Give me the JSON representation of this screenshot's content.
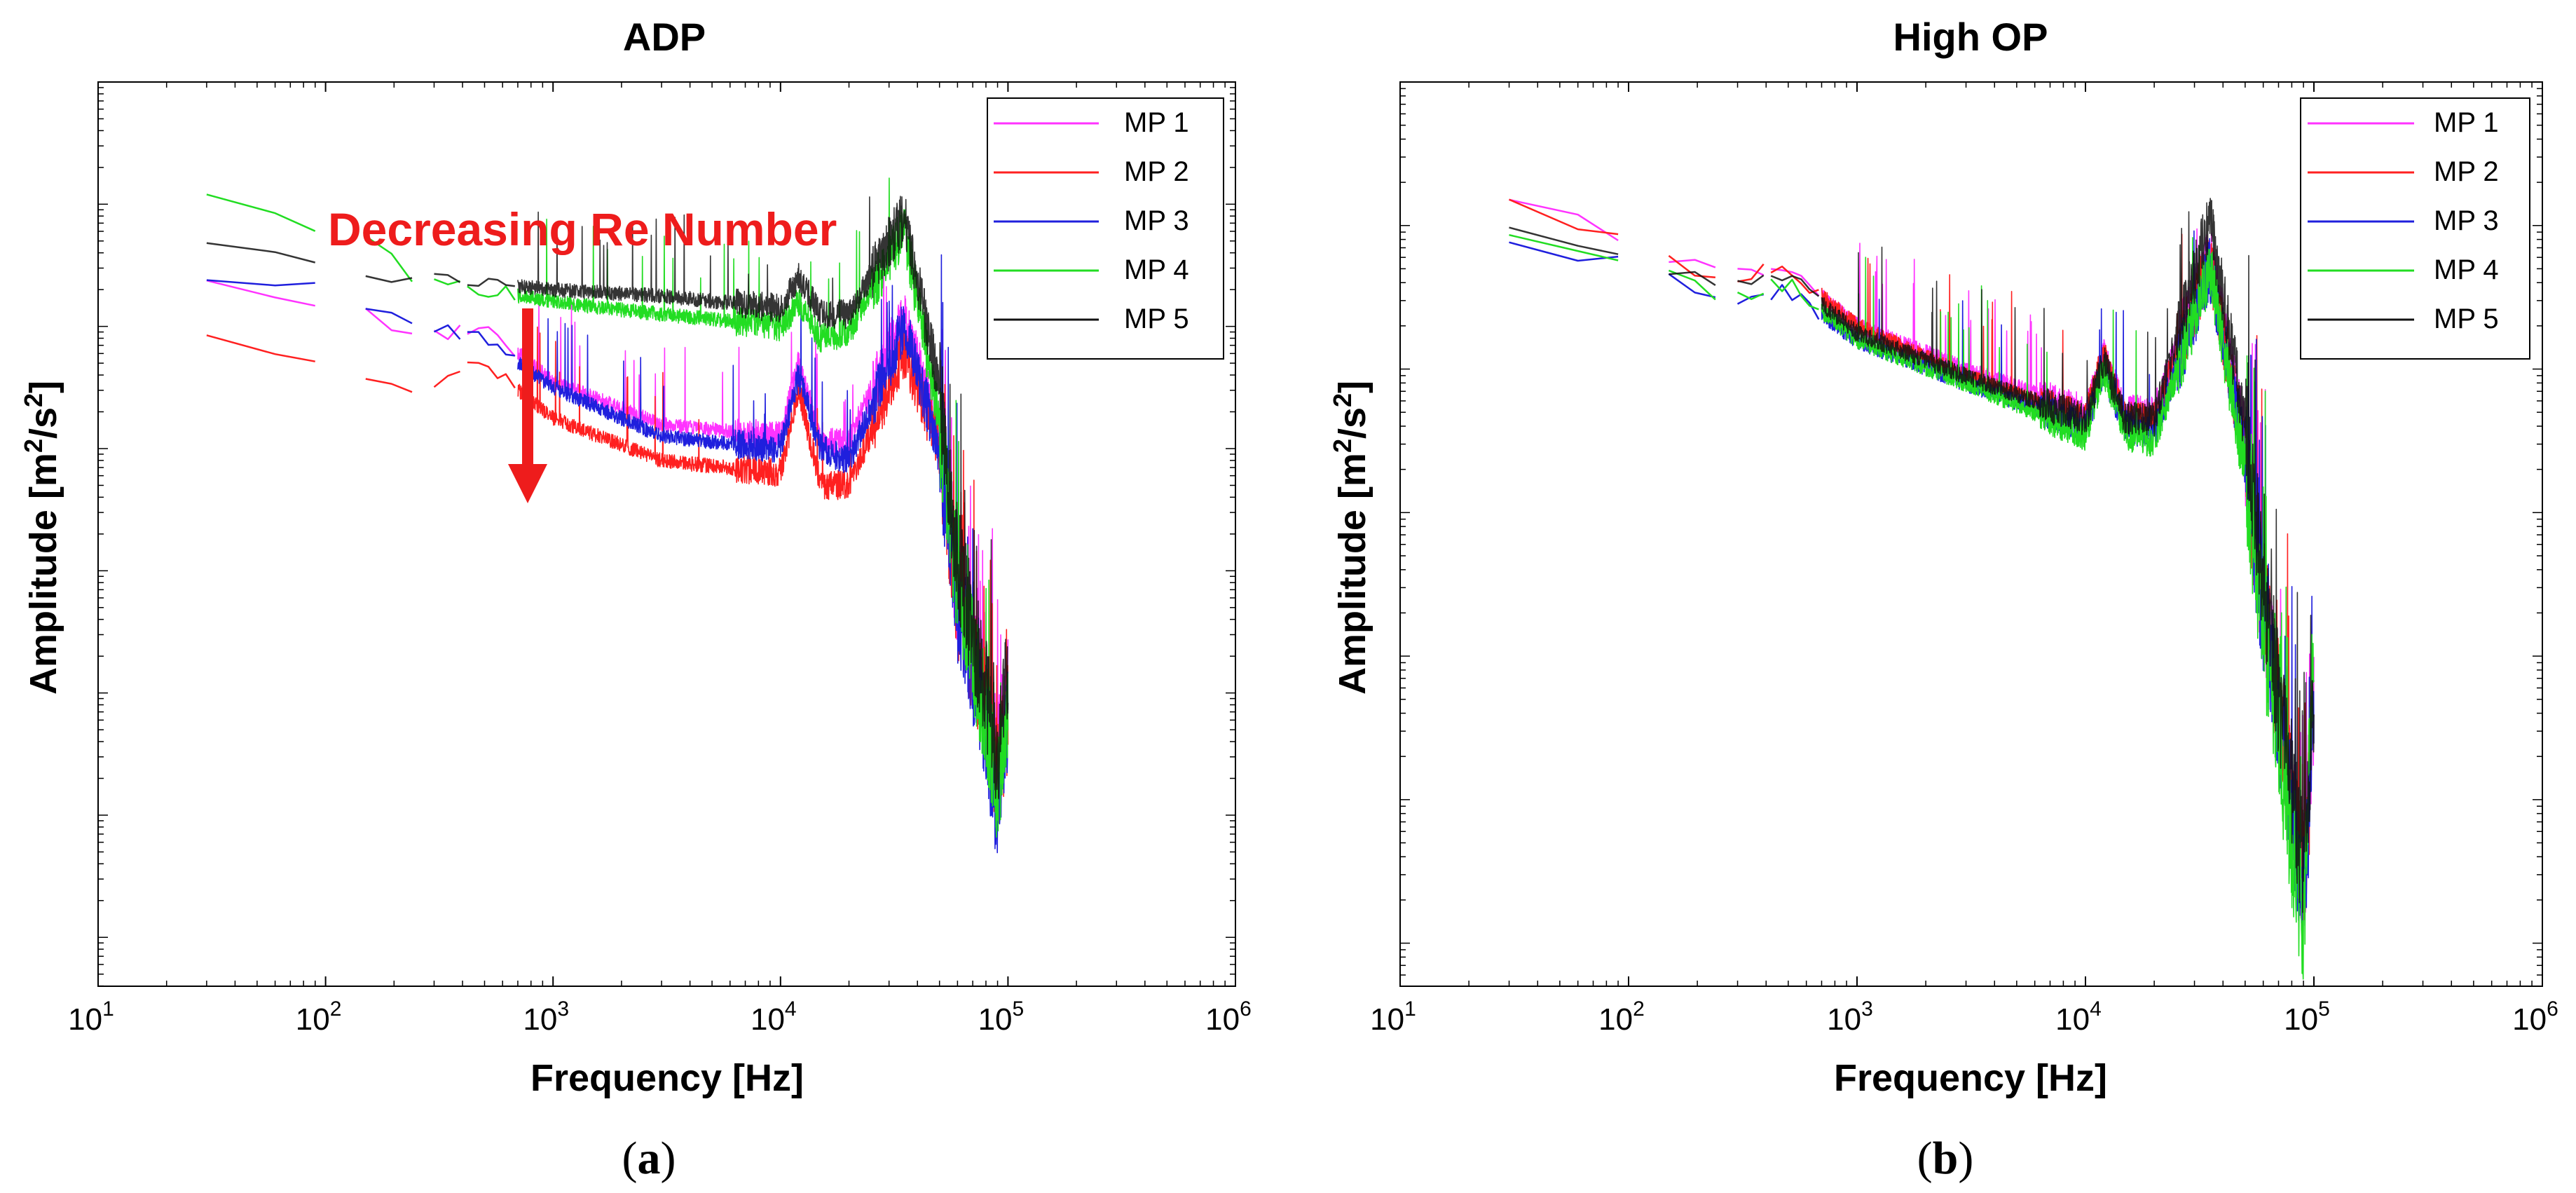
{
  "chart_data": [
    {
      "type": "line",
      "panel_label": "a",
      "title": "ADP",
      "xlabel": "Frequency [Hz]",
      "ylabel": {
        "main": "Amplitude [m",
        "sup1": "2",
        "mid": "/s",
        "sup2": "2",
        "end": "]"
      },
      "x_scale": "log",
      "xlim": [
        10,
        1000000
      ],
      "xticks": [
        {
          "base": "10",
          "exp": "1"
        },
        {
          "base": "10",
          "exp": "2"
        },
        {
          "base": "10",
          "exp": "3"
        },
        {
          "base": "10",
          "exp": "4"
        },
        {
          "base": "10",
          "exp": "5"
        },
        {
          "base": "10",
          "exp": "6"
        }
      ],
      "y_scale": "log",
      "ylim_decades": [
        -7.4,
        0
      ],
      "yticks_shown": false,
      "legend_position": "top-right",
      "annotation": {
        "text": "Decreasing Re Number",
        "arrow": "down",
        "color": "#ee1c1c"
      },
      "series": [
        {
          "name": "MP 1",
          "color": "#ff33ff",
          "anchors": [
            [
              30,
              -1.65
            ],
            [
              90,
              -1.8
            ],
            [
              150,
              -1.85
            ],
            [
              250,
              -2.1
            ],
            [
              500,
              -2.0
            ],
            [
              1000,
              -2.45
            ],
            [
              3000,
              -2.8
            ],
            [
              10000,
              -2.9
            ],
            [
              12000,
              -2.3
            ],
            [
              15000,
              -2.95
            ],
            [
              20000,
              -2.95
            ],
            [
              35000,
              -1.9
            ],
            [
              50000,
              -2.9
            ],
            [
              60000,
              -4.2
            ],
            [
              80000,
              -5.0
            ],
            [
              90000,
              -5.5
            ],
            [
              100000,
              -5.0
            ]
          ]
        },
        {
          "name": "MP 2",
          "color": "#ff2020",
          "anchors": [
            [
              30,
              -2.1
            ],
            [
              90,
              -2.3
            ],
            [
              150,
              -2.4
            ],
            [
              250,
              -2.5
            ],
            [
              500,
              -2.3
            ],
            [
              1000,
              -2.75
            ],
            [
              3000,
              -3.1
            ],
            [
              10000,
              -3.2
            ],
            [
              12000,
              -2.5
            ],
            [
              15000,
              -3.3
            ],
            [
              20000,
              -3.3
            ],
            [
              35000,
              -2.2
            ],
            [
              50000,
              -3.0
            ],
            [
              60000,
              -4.3
            ],
            [
              80000,
              -5.1
            ],
            [
              90000,
              -5.7
            ],
            [
              100000,
              -5.2
            ]
          ]
        },
        {
          "name": "MP 3",
          "color": "#1f1fdd",
          "anchors": [
            [
              30,
              -1.65
            ],
            [
              90,
              -1.7
            ],
            [
              150,
              -1.8
            ],
            [
              250,
              -2.0
            ],
            [
              500,
              -2.1
            ],
            [
              1000,
              -2.5
            ],
            [
              3000,
              -2.9
            ],
            [
              10000,
              -3.0
            ],
            [
              12000,
              -2.4
            ],
            [
              15000,
              -3.0
            ],
            [
              20000,
              -3.1
            ],
            [
              35000,
              -2.0
            ],
            [
              50000,
              -3.0
            ],
            [
              60000,
              -4.3
            ],
            [
              80000,
              -5.3
            ],
            [
              90000,
              -6.0
            ],
            [
              100000,
              -5.2
            ]
          ]
        },
        {
          "name": "MP 4",
          "color": "#22dd22",
          "anchors": [
            [
              30,
              -0.95
            ],
            [
              90,
              -1.2
            ],
            [
              150,
              -1.3
            ],
            [
              250,
              -1.6
            ],
            [
              500,
              -1.7
            ],
            [
              1000,
              -1.8
            ],
            [
              3000,
              -1.9
            ],
            [
              10000,
              -2.0
            ],
            [
              12000,
              -1.8
            ],
            [
              15000,
              -2.1
            ],
            [
              20000,
              -2.05
            ],
            [
              35000,
              -1.2
            ],
            [
              50000,
              -2.8
            ],
            [
              60000,
              -4.1
            ],
            [
              80000,
              -5.2
            ],
            [
              90000,
              -5.8
            ],
            [
              100000,
              -5.1
            ]
          ]
        },
        {
          "name": "MP 5",
          "color": "#111111",
          "anchors": [
            [
              30,
              -1.35
            ],
            [
              90,
              -1.5
            ],
            [
              150,
              -1.6
            ],
            [
              250,
              -1.6
            ],
            [
              500,
              -1.65
            ],
            [
              1000,
              -1.7
            ],
            [
              3000,
              -1.75
            ],
            [
              10000,
              -1.85
            ],
            [
              12000,
              -1.6
            ],
            [
              15000,
              -1.9
            ],
            [
              20000,
              -1.9
            ],
            [
              35000,
              -1.1
            ],
            [
              50000,
              -2.5
            ],
            [
              60000,
              -3.9
            ],
            [
              80000,
              -5.0
            ],
            [
              90000,
              -5.5
            ],
            [
              100000,
              -4.8
            ]
          ]
        }
      ]
    },
    {
      "type": "line",
      "panel_label": "b",
      "title": "High OP",
      "xlabel": "Frequency [Hz]",
      "ylabel": {
        "main": "Amplitude [m",
        "sup1": "2",
        "mid": "/s",
        "sup2": "2",
        "end": "]"
      },
      "x_scale": "log",
      "xlim": [
        10,
        1000000
      ],
      "xticks": [
        {
          "base": "10",
          "exp": "1"
        },
        {
          "base": "10",
          "exp": "2"
        },
        {
          "base": "10",
          "exp": "3"
        },
        {
          "base": "10",
          "exp": "4"
        },
        {
          "base": "10",
          "exp": "5"
        },
        {
          "base": "10",
          "exp": "6"
        }
      ],
      "y_scale": "log",
      "ylim_decades": [
        -6.3,
        0
      ],
      "yticks_shown": false,
      "legend_position": "top-right",
      "series": [
        {
          "name": "MP 1",
          "color": "#ff33ff",
          "anchors": [
            [
              30,
              -0.85
            ],
            [
              90,
              -1.05
            ],
            [
              150,
              -1.2
            ],
            [
              250,
              -1.35
            ],
            [
              500,
              -1.3
            ],
            [
              1000,
              -1.7
            ],
            [
              3000,
              -2.0
            ],
            [
              10000,
              -2.3
            ],
            [
              12000,
              -1.9
            ],
            [
              15000,
              -2.3
            ],
            [
              20000,
              -2.3
            ],
            [
              35000,
              -1.2
            ],
            [
              50000,
              -2.5
            ],
            [
              60000,
              -3.6
            ],
            [
              80000,
              -5.0
            ],
            [
              90000,
              -5.6
            ],
            [
              100000,
              -4.3
            ]
          ]
        },
        {
          "name": "MP 2",
          "color": "#ff2020",
          "anchors": [
            [
              30,
              -0.85
            ],
            [
              90,
              -1.05
            ],
            [
              150,
              -1.25
            ],
            [
              250,
              -1.35
            ],
            [
              500,
              -1.3
            ],
            [
              1000,
              -1.7
            ],
            [
              3000,
              -2.05
            ],
            [
              10000,
              -2.35
            ],
            [
              12000,
              -1.9
            ],
            [
              15000,
              -2.35
            ],
            [
              20000,
              -2.35
            ],
            [
              35000,
              -1.25
            ],
            [
              50000,
              -2.6
            ],
            [
              60000,
              -3.6
            ],
            [
              80000,
              -5.0
            ],
            [
              90000,
              -5.6
            ],
            [
              100000,
              -4.4
            ]
          ]
        },
        {
          "name": "MP 3",
          "color": "#1f1fdd",
          "anchors": [
            [
              30,
              -1.15
            ],
            [
              90,
              -1.25
            ],
            [
              150,
              -1.35
            ],
            [
              250,
              -1.55
            ],
            [
              500,
              -1.45
            ],
            [
              1000,
              -1.8
            ],
            [
              3000,
              -2.1
            ],
            [
              10000,
              -2.4
            ],
            [
              12000,
              -2.0
            ],
            [
              15000,
              -2.4
            ],
            [
              20000,
              -2.45
            ],
            [
              35000,
              -1.3
            ],
            [
              50000,
              -2.6
            ],
            [
              60000,
              -3.7
            ],
            [
              80000,
              -5.1
            ],
            [
              90000,
              -5.7
            ],
            [
              100000,
              -4.5
            ]
          ]
        },
        {
          "name": "MP 4",
          "color": "#22dd22",
          "anchors": [
            [
              30,
              -1.1
            ],
            [
              90,
              -1.2
            ],
            [
              150,
              -1.3
            ],
            [
              250,
              -1.5
            ],
            [
              500,
              -1.4
            ],
            [
              1000,
              -1.8
            ],
            [
              3000,
              -2.1
            ],
            [
              10000,
              -2.45
            ],
            [
              12000,
              -2.0
            ],
            [
              15000,
              -2.45
            ],
            [
              20000,
              -2.5
            ],
            [
              35000,
              -1.3
            ],
            [
              50000,
              -2.7
            ],
            [
              60000,
              -3.8
            ],
            [
              80000,
              -5.3
            ],
            [
              90000,
              -5.9
            ],
            [
              100000,
              -3.8
            ]
          ]
        },
        {
          "name": "MP 5",
          "color": "#111111",
          "anchors": [
            [
              30,
              -1.05
            ],
            [
              90,
              -1.2
            ],
            [
              150,
              -1.3
            ],
            [
              250,
              -1.45
            ],
            [
              500,
              -1.35
            ],
            [
              1000,
              -1.75
            ],
            [
              3000,
              -2.05
            ],
            [
              10000,
              -2.35
            ],
            [
              12000,
              -1.95
            ],
            [
              15000,
              -2.35
            ],
            [
              20000,
              -2.35
            ],
            [
              35000,
              -0.95
            ],
            [
              50000,
              -2.4
            ],
            [
              60000,
              -3.5
            ],
            [
              80000,
              -4.9
            ],
            [
              90000,
              -5.5
            ],
            [
              100000,
              -4.2
            ]
          ]
        }
      ]
    }
  ]
}
